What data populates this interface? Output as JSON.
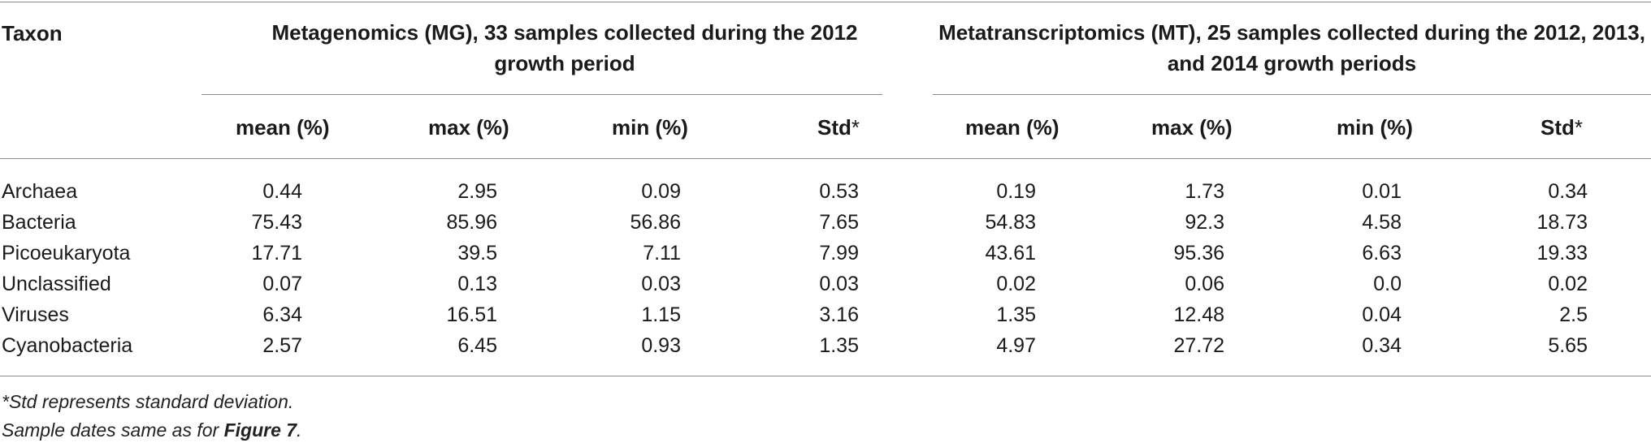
{
  "table": {
    "taxon_header": "Taxon",
    "mg_header": "Metagenomics (MG), 33 samples collected during the 2012 growth period",
    "mt_header": "Metatranscriptomics (MT), 25 samples collected during the 2012, 2013, and 2014 growth periods",
    "sub_headers": {
      "mean": "mean (%)",
      "max": "max (%)",
      "min": "min (%)",
      "std": "Std",
      "std_mark": "*"
    },
    "rows": [
      {
        "taxon": "Archaea",
        "mg": [
          "0.44",
          "2.95",
          "0.09",
          "0.53"
        ],
        "mt": [
          "0.19",
          "1.73",
          "0.01",
          "0.34"
        ]
      },
      {
        "taxon": "Bacteria",
        "mg": [
          "75.43",
          "85.96",
          "56.86",
          "7.65"
        ],
        "mt": [
          "54.83",
          "92.3",
          "4.58",
          "18.73"
        ]
      },
      {
        "taxon": "Picoeukaryota",
        "mg": [
          "17.71",
          "39.5",
          "7.11",
          "7.99"
        ],
        "mt": [
          "43.61",
          "95.36",
          "6.63",
          "19.33"
        ]
      },
      {
        "taxon": "Unclassified",
        "mg": [
          "0.07",
          "0.13",
          "0.03",
          "0.03"
        ],
        "mt": [
          "0.02",
          "0.06",
          "0.0",
          "0.02"
        ]
      },
      {
        "taxon": "Viruses",
        "mg": [
          "6.34",
          "16.51",
          "1.15",
          "3.16"
        ],
        "mt": [
          "1.35",
          "12.48",
          "0.04",
          "2.5"
        ]
      },
      {
        "taxon": "Cyanobacteria",
        "mg": [
          "2.57",
          "6.45",
          "0.93",
          "1.35"
        ],
        "mt": [
          "4.97",
          "27.72",
          "0.34",
          "5.65"
        ]
      }
    ]
  },
  "footnotes": {
    "std_note": "*Std represents standard deviation.",
    "sample_prefix": "Sample dates same as for ",
    "sample_figure": "Figure 7",
    "sample_suffix": "."
  }
}
